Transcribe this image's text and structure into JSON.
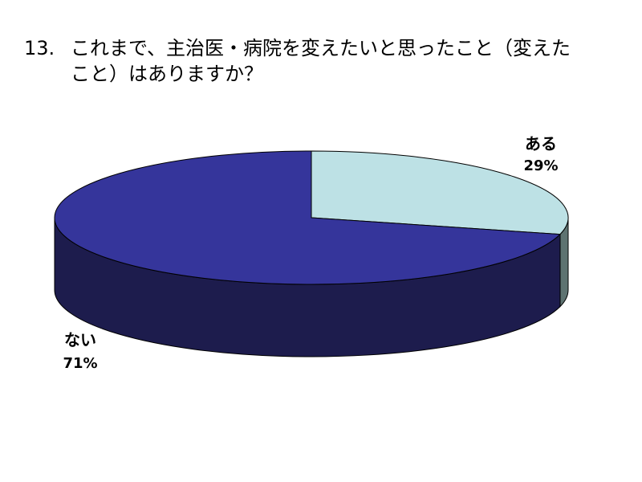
{
  "title": {
    "number": "13.",
    "line1": "これまで、主治医・病院を変えたいと思ったこと（変えた",
    "line2": "こと）はありますか？"
  },
  "chart_data": {
    "type": "pie",
    "labels": [
      "ある",
      "ない"
    ],
    "values": [
      29,
      71
    ],
    "value_labels": [
      "29%",
      "71%"
    ],
    "colors": {
      "ある": {
        "top": "#bde1e5",
        "side": "#5e7371"
      },
      "ない": {
        "top": "#35359b",
        "side": "#1d1c4d"
      }
    },
    "legend": "none",
    "style": "3d"
  }
}
